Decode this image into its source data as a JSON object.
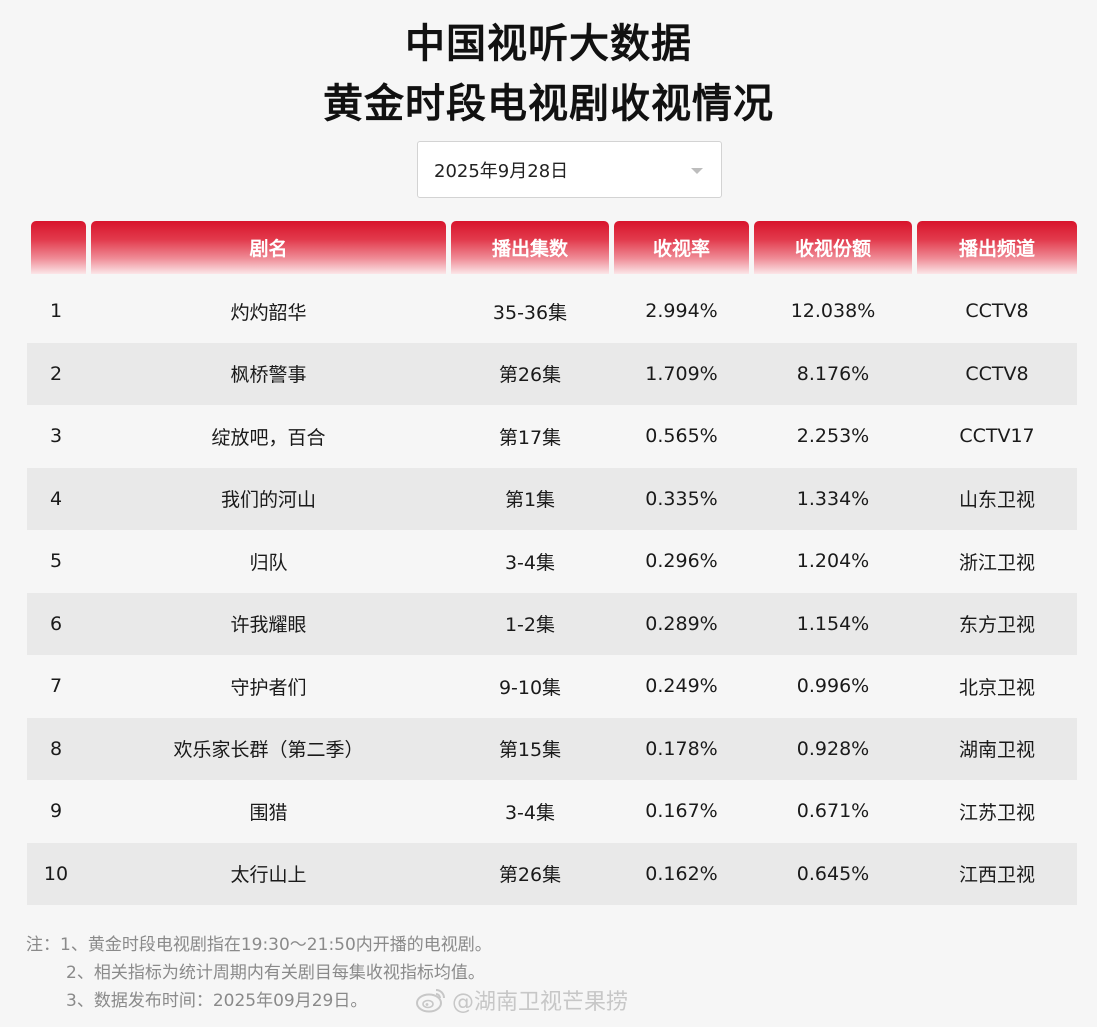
{
  "title_line1": "中国视听大数据",
  "title_line2": "黄金时段电视剧收视情况",
  "date_select": {
    "value": "2025年9月28日"
  },
  "table": {
    "headers": [
      "",
      "剧名",
      "播出集数",
      "收视率",
      "收视份额",
      "播出频道"
    ],
    "rows": [
      {
        "rank": "1",
        "name": "灼灼韶华",
        "episodes": "35-36集",
        "rating": "2.994%",
        "share": "12.038%",
        "channel": "CCTV8"
      },
      {
        "rank": "2",
        "name": "枫桥警事",
        "episodes": "第26集",
        "rating": "1.709%",
        "share": "8.176%",
        "channel": "CCTV8"
      },
      {
        "rank": "3",
        "name": "绽放吧，百合",
        "episodes": "第17集",
        "rating": "0.565%",
        "share": "2.253%",
        "channel": "CCTV17"
      },
      {
        "rank": "4",
        "name": "我们的河山",
        "episodes": "第1集",
        "rating": "0.335%",
        "share": "1.334%",
        "channel": "山东卫视"
      },
      {
        "rank": "5",
        "name": "归队",
        "episodes": "3-4集",
        "rating": "0.296%",
        "share": "1.204%",
        "channel": "浙江卫视"
      },
      {
        "rank": "6",
        "name": "许我耀眼",
        "episodes": "1-2集",
        "rating": "0.289%",
        "share": "1.154%",
        "channel": "东方卫视"
      },
      {
        "rank": "7",
        "name": "守护者们",
        "episodes": "9-10集",
        "rating": "0.249%",
        "share": "0.996%",
        "channel": "北京卫视"
      },
      {
        "rank": "8",
        "name": "欢乐家长群（第二季）",
        "episodes": "第15集",
        "rating": "0.178%",
        "share": "0.928%",
        "channel": "湖南卫视"
      },
      {
        "rank": "9",
        "name": "围猎",
        "episodes": "3-4集",
        "rating": "0.167%",
        "share": "0.671%",
        "channel": "江苏卫视"
      },
      {
        "rank": "10",
        "name": "太行山上",
        "episodes": "第26集",
        "rating": "0.162%",
        "share": "0.645%",
        "channel": "江西卫视"
      }
    ]
  },
  "notes": [
    "注：1、黄金时段电视剧指在19:30～21:50内开播的电视剧。",
    "2、相关指标为统计周期内有关剧目每集收视指标均值。",
    "3、数据发布时间：2025年09月29日。"
  ],
  "watermark": {
    "text": "@湖南卫视芒果捞",
    "icon": "weibo-icon"
  },
  "colors": {
    "header_red": "#d8142c",
    "row_alt": "#e9e9e9",
    "background": "#f6f6f6"
  }
}
